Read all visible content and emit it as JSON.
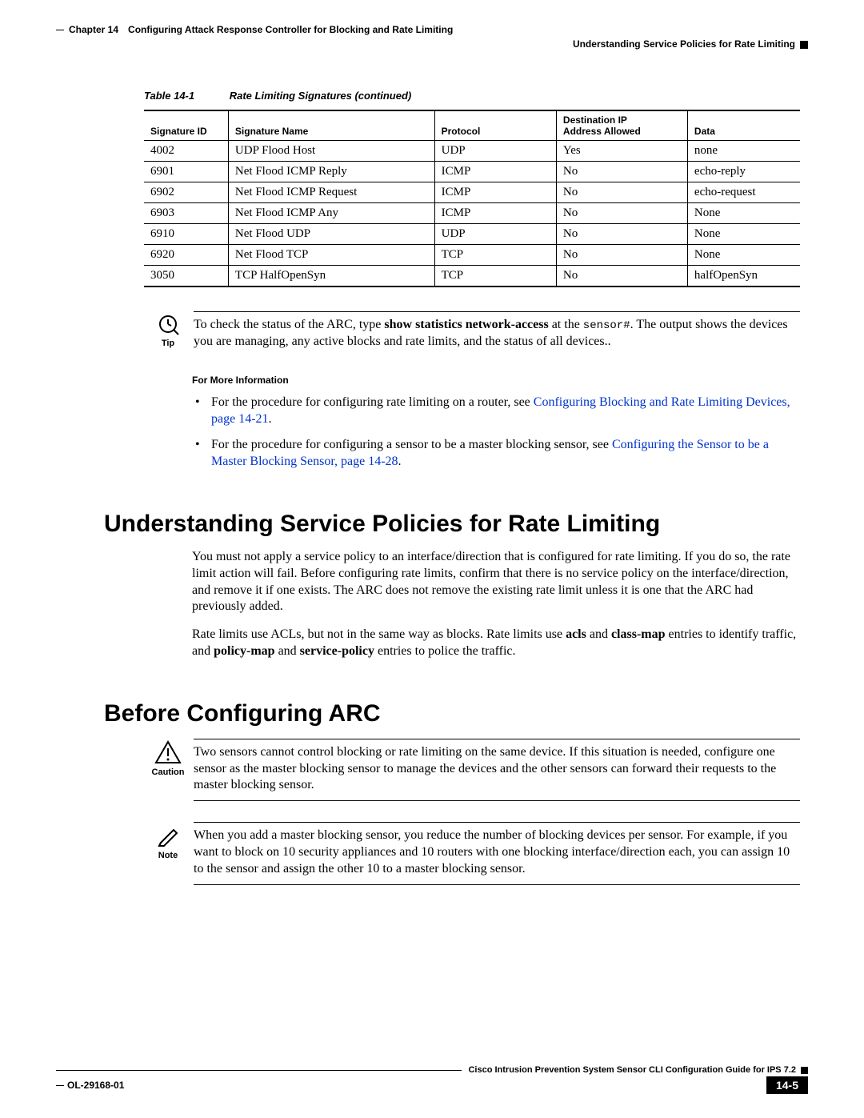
{
  "header": {
    "chapter_label": "Chapter 14",
    "chapter_title": "Configuring Attack Response Controller for Blocking and Rate Limiting",
    "section_title": "Understanding Service Policies for Rate Limiting"
  },
  "table": {
    "caption_number": "Table 14-1",
    "caption_text": "Rate Limiting Signatures (continued)",
    "columns": [
      "Signature ID",
      "Signature Name",
      "Protocol",
      "Destination IP Address Allowed",
      "Data"
    ],
    "rows": [
      [
        "4002",
        "UDP Flood Host",
        "UDP",
        "Yes",
        "none"
      ],
      [
        "6901",
        "Net Flood ICMP Reply",
        "ICMP",
        "No",
        "echo-reply"
      ],
      [
        "6902",
        "Net Flood ICMP Request",
        "ICMP",
        "No",
        "echo-request"
      ],
      [
        "6903",
        "Net Flood ICMP Any",
        "ICMP",
        "No",
        "None"
      ],
      [
        "6910",
        "Net Flood UDP",
        "UDP",
        "No",
        "None"
      ],
      [
        "6920",
        "Net Flood TCP",
        "TCP",
        "No",
        "None"
      ],
      [
        "3050",
        "TCP HalfOpenSyn",
        "TCP",
        "No",
        "halfOpenSyn"
      ]
    ]
  },
  "tip": {
    "label": "Tip",
    "text_pre": "To check the status of the ARC, type ",
    "bold1": "show statistics network-access",
    "text_mid": " at the ",
    "mono": "sensor#",
    "text_post": ". The output shows the devices you are managing, any active blocks and rate limits, and the status of all devices.."
  },
  "more_info": {
    "title": "For More Information",
    "item1_pre": "For the procedure for configuring rate limiting on a router, see ",
    "item1_link": "Configuring Blocking and Rate Limiting Devices, page 14-21",
    "item1_post": ".",
    "item2_pre": "For the procedure for configuring a sensor to be a master blocking sensor, see ",
    "item2_link": "Configuring the Sensor to be a Master Blocking Sensor, page 14-28",
    "item2_post": "."
  },
  "section1": {
    "heading": "Understanding Service Policies for Rate Limiting",
    "p1": "You must not apply a service policy to an interface/direction that is configured for rate limiting. If you do so, the rate limit action will fail. Before configuring rate limits, confirm that there is no service policy on the interface/direction, and remove it if one exists. The ARC does not remove the existing rate limit unless it is one that the ARC had previously added.",
    "p2_pre": "Rate limits use ACLs, but not in the same way as blocks. Rate limits use ",
    "p2_b1": "acls",
    "p2_mid1": " and ",
    "p2_b2": "class-map",
    "p2_mid2": " entries to identify traffic, and ",
    "p2_b3": "policy-map",
    "p2_mid3": " and ",
    "p2_b4": "service-policy",
    "p2_post": " entries to police the traffic."
  },
  "section2": {
    "heading": "Before Configuring ARC"
  },
  "caution": {
    "label": "Caution",
    "text": "Two sensors cannot control blocking or rate limiting on the same device. If this situation is needed, configure one sensor as the master blocking sensor to manage the devices and the other sensors can forward their requests to the master blocking sensor."
  },
  "note": {
    "label": "Note",
    "text": "When you add a master blocking sensor, you reduce the number of blocking devices per sensor. For example, if you want to block on 10 security appliances and 10 routers with one blocking interface/direction each, you can assign 10 to the sensor and assign the other 10 to a master blocking sensor."
  },
  "footer": {
    "guide": "Cisco Intrusion Prevention System Sensor CLI Configuration Guide for IPS 7.2",
    "doc_id": "OL-29168-01",
    "page": "14-5"
  },
  "colors": {
    "link": "#0033cc",
    "text": "#000000",
    "background": "#ffffff"
  }
}
